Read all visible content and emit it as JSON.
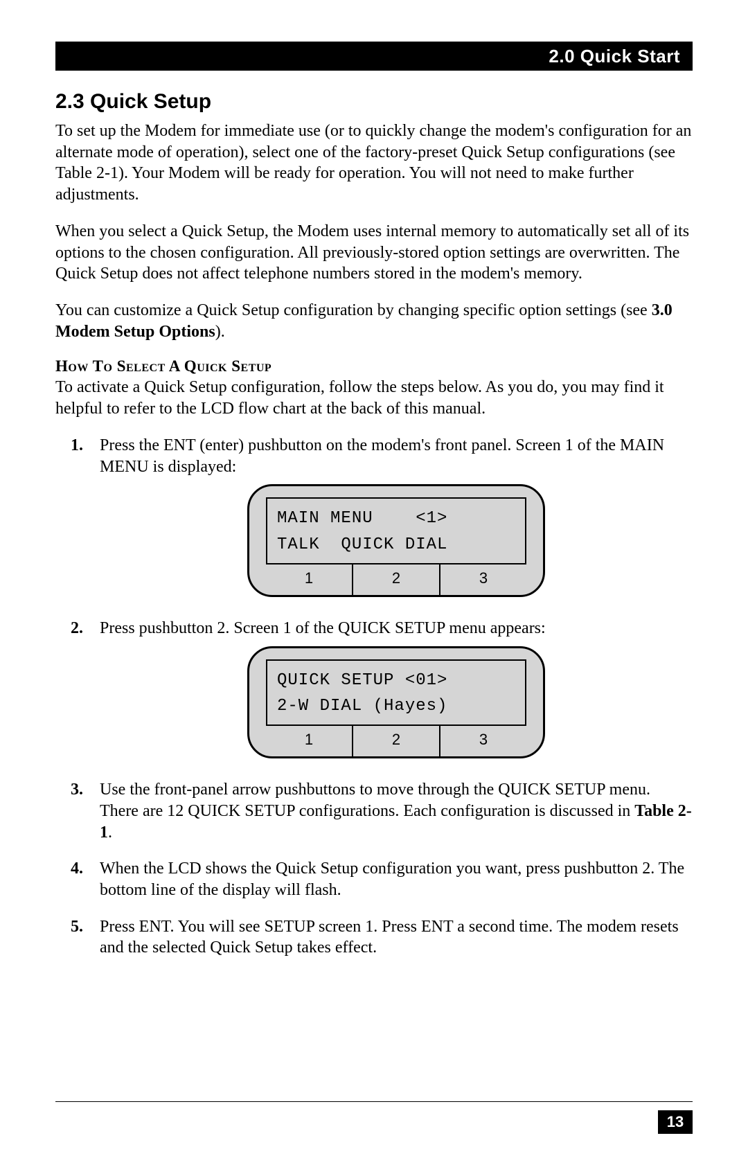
{
  "header": {
    "chapter_label": "2.0  Quick Start"
  },
  "section": {
    "heading": "2.3 Quick Setup",
    "para1": "To set up the Modem for immediate use (or to quickly change the modem's configuration for an alternate mode of operation), select one of the factory-preset Quick Setup configurations (see Table 2-1). Your Modem will be ready for operation. You will not need to make further adjustments.",
    "para2": "When you select a Quick Setup, the Modem uses internal memory to automatically set all of its options to the chosen configuration. All previously-stored option settings are overwritten.  The Quick Setup does not affect telephone numbers stored in the modem's memory.",
    "para3_prefix": "You can customize a Quick Setup configuration by changing specific option settings (see ",
    "para3_bold": "3.0 Modem Setup Options",
    "para3_suffix": ")."
  },
  "howto": {
    "heading": "How To Select A Quick Setup",
    "intro": "To activate a Quick Setup configuration, follow the steps below. As you do, you may find it helpful to refer to the LCD flow chart at the back of this manual."
  },
  "steps": {
    "s1": "Press the ENT (enter) pushbutton on the modem's front panel. Screen 1 of the MAIN MENU is displayed:",
    "s2": "Press pushbutton 2.  Screen 1 of the QUICK SETUP menu appears:",
    "s3_prefix": "Use the front-panel arrow pushbuttons to move through the QUICK SETUP menu. There are 12 QUICK SETUP configurations. Each configuration is discussed in ",
    "s3_bold": "Table 2-1",
    "s3_suffix": ".",
    "s4": "When the LCD shows the Quick Setup configuration you want, press pushbutton 2. The bottom line of the display will flash.",
    "s5": "Press ENT. You will see SETUP screen 1. Press ENT a second time. The modem resets and the selected Quick Setup takes effect."
  },
  "lcd1": {
    "line1": "MAIN MENU    <1>",
    "line2": "TALK  QUICK DIAL",
    "buttons": [
      "1",
      "2",
      "3"
    ],
    "border_color": "#000000",
    "bg_color": "#d5d5d5",
    "font": "Courier"
  },
  "lcd2": {
    "line1": "QUICK SETUP <01>",
    "line2": "2-W DIAL (Hayes)",
    "buttons": [
      "1",
      "2",
      "3"
    ],
    "border_color": "#000000",
    "bg_color": "#d5d5d5",
    "font": "Courier"
  },
  "footer": {
    "page_number": "13"
  },
  "style": {
    "page_bg": "#ffffff",
    "text_color": "#000000",
    "header_bg": "#000000",
    "header_text": "#ffffff",
    "body_font": "New Century Schoolbook",
    "heading_font": "Helvetica",
    "body_fontsize_pt": 12,
    "heading_fontsize_pt": 15
  }
}
